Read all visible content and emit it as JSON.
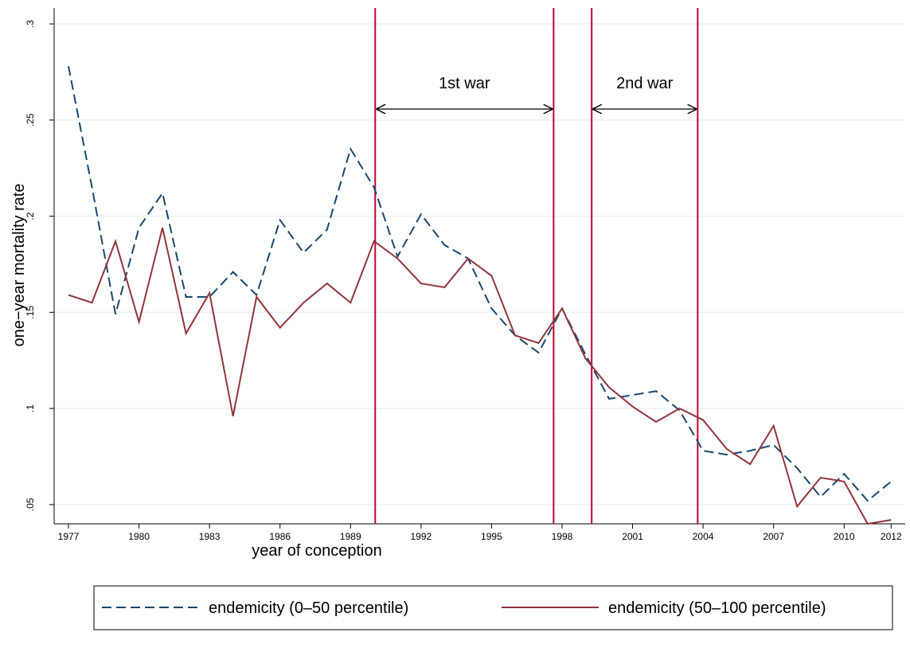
{
  "chart_data": {
    "type": "line",
    "x_label": "year of conception",
    "y_label": "one−year mortality rate",
    "x": [
      1977,
      1978,
      1979,
      1980,
      1981,
      1982,
      1983,
      1984,
      1985,
      1986,
      1987,
      1988,
      1989,
      1990,
      1991,
      1992,
      1993,
      1994,
      1995,
      1996,
      1997,
      1998,
      1999,
      2000,
      2001,
      2002,
      2003,
      2004,
      2005,
      2006,
      2007,
      2008,
      2009,
      2010,
      2011,
      2012
    ],
    "series": [
      {
        "name": "endemicity (0–50 percentile)",
        "color": "#1a476f",
        "dash": true,
        "values": [
          0.278,
          0.215,
          0.149,
          0.194,
          0.212,
          0.158,
          0.158,
          0.171,
          0.159,
          0.198,
          0.181,
          0.193,
          0.235,
          0.215,
          0.179,
          0.201,
          0.185,
          0.178,
          0.152,
          0.138,
          0.129,
          0.152,
          0.128,
          0.105,
          0.107,
          0.109,
          0.099,
          0.078,
          0.076,
          0.078,
          0.081,
          0.069,
          0.054,
          0.066,
          0.052,
          0.062
        ]
      },
      {
        "name": "endemicity (50–100 percentile)",
        "color": "#90353b",
        "dash": false,
        "values": [
          0.159,
          0.155,
          0.187,
          0.145,
          0.194,
          0.139,
          0.16,
          0.096,
          0.158,
          0.142,
          0.155,
          0.165,
          0.155,
          0.187,
          0.178,
          0.165,
          0.163,
          0.178,
          0.169,
          0.138,
          0.134,
          0.152,
          0.126,
          0.111,
          0.101,
          0.093,
          0.1,
          0.094,
          0.079,
          0.071,
          0.091,
          0.049,
          0.064,
          0.062,
          0.04,
          0.042
        ]
      }
    ],
    "xlim": [
      1976.39,
      2012.6
    ],
    "ylim": [
      0.04,
      0.3083
    ],
    "xticks": [
      1977,
      1980,
      1983,
      1986,
      1989,
      1992,
      1995,
      1998,
      2001,
      2004,
      2007,
      2010,
      2012
    ],
    "yticks": [
      {
        "value": 0.05,
        "label": ".05"
      },
      {
        "value": 0.1,
        "label": ".1"
      },
      {
        "value": 0.15,
        "label": ".15"
      },
      {
        "value": 0.2,
        "label": ".2"
      },
      {
        "value": 0.25,
        "label": ".25"
      },
      {
        "value": 0.3,
        "label": ".3"
      }
    ],
    "vlines": [
      1990.05,
      1997.64,
      1999.26,
      2003.77
    ],
    "vline_color": "#c10534",
    "annotations": [
      {
        "text": "1st war"
      },
      {
        "text": "2nd war"
      }
    ],
    "grid": true,
    "legend": "bottom"
  }
}
